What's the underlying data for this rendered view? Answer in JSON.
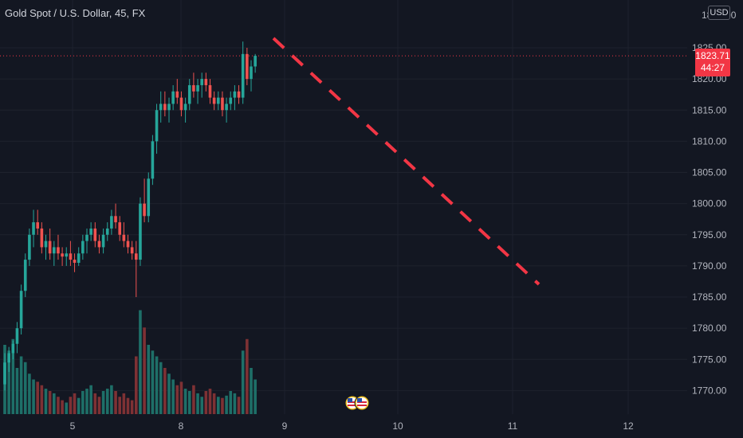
{
  "symbol": {
    "title": "Gold Spot / U.S. Dollar, 45, FX"
  },
  "currency": "USD",
  "last_price": {
    "value": "1823.71",
    "countdown": "44:27"
  },
  "price_axis": {
    "top_cut_label": "1830.00",
    "ticks": [
      "1825.00",
      "1820.00",
      "1815.00",
      "1810.00",
      "1805.00",
      "1800.00",
      "1795.00",
      "1790.00",
      "1785.00",
      "1780.00",
      "1775.00",
      "1770.00"
    ]
  },
  "time_axis": {
    "ticks": [
      "5",
      "8",
      "9",
      "10",
      "11",
      "12"
    ]
  },
  "events": [
    {
      "icon": "us-flag-icon"
    },
    {
      "icon": "us-flag-icon"
    }
  ],
  "colors": {
    "background": "#131722",
    "grid": "#1e222d",
    "up": "#26a69a",
    "down": "#ef5350",
    "up_volume": "#1e6f68",
    "down_volume": "#7e3134",
    "forecast_line": "#f23645",
    "last_price_badge": "#f23645"
  },
  "chart_data": {
    "type": "candlestick",
    "title": "Gold Spot / U.S. Dollar, 45, FX",
    "ylim": [
      1767,
      1830
    ],
    "x_ticks": [
      "5",
      "8",
      "9",
      "10",
      "11",
      "12"
    ],
    "last_price": 1823.71,
    "ohlc": [
      [
        1771,
        1776,
        1770,
        1774.5
      ],
      [
        1774.5,
        1777,
        1773,
        1776
      ],
      [
        1776,
        1778,
        1775,
        1777.5
      ],
      [
        1777.5,
        1781,
        1776,
        1780
      ],
      [
        1780,
        1787,
        1779,
        1786
      ],
      [
        1786,
        1792,
        1785,
        1791
      ],
      [
        1791,
        1796,
        1790,
        1795
      ],
      [
        1795,
        1799,
        1793,
        1797
      ],
      [
        1797,
        1799,
        1795,
        1796
      ],
      [
        1796,
        1797,
        1792,
        1793
      ],
      [
        1793,
        1795,
        1791,
        1794
      ],
      [
        1794,
        1796,
        1791,
        1792
      ],
      [
        1792,
        1794,
        1790,
        1793
      ],
      [
        1793,
        1795,
        1791,
        1792
      ],
      [
        1792,
        1793,
        1790,
        1791.5
      ],
      [
        1791.5,
        1793,
        1790,
        1792
      ],
      [
        1792,
        1794,
        1790,
        1791
      ],
      [
        1791,
        1792,
        1789,
        1790.5
      ],
      [
        1790.5,
        1793,
        1790,
        1792
      ],
      [
        1792,
        1795,
        1791,
        1794
      ],
      [
        1794,
        1796,
        1792,
        1795
      ],
      [
        1795,
        1797,
        1794,
        1796
      ],
      [
        1796,
        1797,
        1793,
        1794
      ],
      [
        1794,
        1795,
        1792,
        1793
      ],
      [
        1793,
        1796,
        1792,
        1795
      ],
      [
        1795,
        1797,
        1794,
        1796
      ],
      [
        1796,
        1799,
        1795,
        1798
      ],
      [
        1798,
        1800,
        1796,
        1797
      ],
      [
        1797,
        1798,
        1794,
        1795
      ],
      [
        1795,
        1797,
        1793,
        1794
      ],
      [
        1794,
        1795,
        1792,
        1793
      ],
      [
        1793,
        1794,
        1791,
        1792
      ],
      [
        1792,
        1794,
        1785,
        1791
      ],
      [
        1791,
        1801,
        1790,
        1800
      ],
      [
        1800,
        1804,
        1797,
        1798
      ],
      [
        1798,
        1805,
        1797,
        1804
      ],
      [
        1804,
        1811,
        1803,
        1810
      ],
      [
        1810,
        1816,
        1808,
        1815
      ],
      [
        1815,
        1818,
        1813,
        1816
      ],
      [
        1816,
        1818,
        1814,
        1815
      ],
      [
        1815,
        1817,
        1813,
        1816
      ],
      [
        1816,
        1819,
        1815,
        1818
      ],
      [
        1818,
        1820,
        1816,
        1817
      ],
      [
        1817,
        1818,
        1814,
        1815
      ],
      [
        1815,
        1817,
        1813,
        1816
      ],
      [
        1816,
        1820,
        1815,
        1819
      ],
      [
        1819,
        1821,
        1817,
        1818
      ],
      [
        1818,
        1820,
        1816,
        1819
      ],
      [
        1819,
        1821,
        1817,
        1820
      ],
      [
        1820,
        1821,
        1818,
        1819
      ],
      [
        1819,
        1820,
        1816,
        1817
      ],
      [
        1817,
        1818,
        1815,
        1816
      ],
      [
        1816,
        1818,
        1815,
        1817
      ],
      [
        1817,
        1818,
        1814,
        1815
      ],
      [
        1815,
        1817,
        1813,
        1816
      ],
      [
        1816,
        1818,
        1815,
        1817
      ],
      [
        1817,
        1819,
        1815,
        1818
      ],
      [
        1818,
        1819,
        1816,
        1817
      ],
      [
        1817,
        1826,
        1816,
        1824
      ],
      [
        1824,
        1825,
        1819,
        1820
      ],
      [
        1820,
        1823,
        1818,
        1822
      ],
      [
        1822,
        1824,
        1821,
        1823.71
      ]
    ],
    "volume": [
      60,
      55,
      65,
      40,
      50,
      45,
      35,
      30,
      28,
      25,
      22,
      20,
      18,
      15,
      12,
      10,
      15,
      18,
      14,
      20,
      22,
      25,
      18,
      15,
      20,
      22,
      25,
      20,
      15,
      18,
      14,
      12,
      50,
      90,
      75,
      60,
      55,
      50,
      45,
      40,
      35,
      30,
      25,
      28,
      22,
      20,
      25,
      18,
      15,
      20,
      22,
      18,
      15,
      14,
      16,
      20,
      18,
      15,
      55,
      65,
      40,
      30
    ],
    "forecast_line": {
      "from": [
        1825,
        "after last bar"
      ],
      "to": [
        1788,
        "near 11"
      ],
      "style": "dashed",
      "color": "#f23645"
    }
  }
}
